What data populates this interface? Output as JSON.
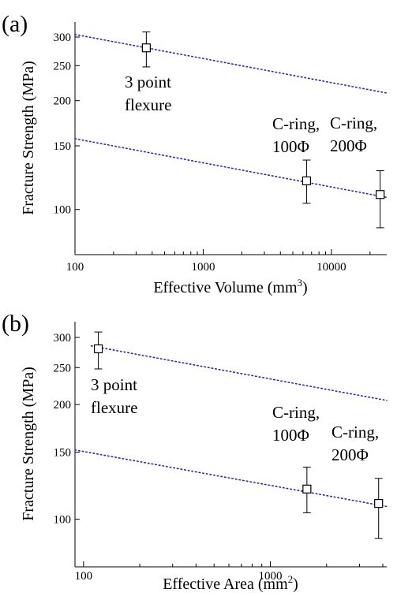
{
  "chart_data": [
    {
      "type": "scatter",
      "panel_label": "(a)",
      "xlabel": "Effective Volume (mm³)",
      "xlabel_base": "Effective Volume (mm",
      "xlabel_sup": "3",
      "xlabel_tail": ")",
      "ylabel": "Fracture Strength (MPa)",
      "xscale": "log",
      "yscale": "log",
      "xlim": [
        100,
        27000
      ],
      "ylim": [
        75,
        330
      ],
      "xticks": [
        100,
        1000,
        10000
      ],
      "xtick_labels": [
        "100",
        "1000",
        "10000"
      ],
      "yticks": [
        100,
        150,
        200,
        250,
        300
      ],
      "ytick_labels": [
        "100",
        "150",
        "200",
        "250",
        "300"
      ],
      "grid": false,
      "points": [
        {
          "x": 360,
          "y": 280,
          "err_lo": 32,
          "err_hi": 30,
          "label": [
            "3 point",
            "flexure"
          ]
        },
        {
          "x": 6400,
          "y": 120,
          "err_lo": 16,
          "err_hi": 17,
          "label": [
            "C-ring,",
            "100Φ"
          ]
        },
        {
          "x": 24000,
          "y": 110,
          "err_lo": 21,
          "err_hi": 18,
          "label": [
            "C-ring,",
            "200Φ"
          ]
        }
      ],
      "fit_lines": [
        {
          "x": [
            100,
            27000
          ],
          "y": [
            305,
            210
          ]
        },
        {
          "x": [
            100,
            27000
          ],
          "y": [
            157,
            108
          ]
        }
      ]
    },
    {
      "type": "scatter",
      "panel_label": "(b)",
      "xlabel": "Effective Area (mm²)",
      "xlabel_base": "Effective Area (mm",
      "xlabel_sup": "2",
      "xlabel_tail": ")",
      "ylabel": "Fracture Strength (MPa)",
      "xscale": "log",
      "yscale": "log",
      "xlim": [
        90,
        4200
      ],
      "ylim": [
        75,
        330
      ],
      "xticks": [
        100,
        1000
      ],
      "xtick_labels": [
        "100",
        "1000"
      ],
      "yticks": [
        100,
        150,
        200,
        250,
        300
      ],
      "ytick_labels": [
        "100",
        "150",
        "200",
        "250",
        "300"
      ],
      "grid": false,
      "points": [
        {
          "x": 120,
          "y": 280,
          "err_lo": 32,
          "err_hi": 30,
          "label": [
            "3 point",
            "flexure"
          ]
        },
        {
          "x": 1570,
          "y": 120,
          "err_lo": 16,
          "err_hi": 17,
          "label": [
            "C-ring,",
            "100Φ"
          ]
        },
        {
          "x": 3800,
          "y": 110,
          "err_lo": 21,
          "err_hi": 18,
          "label": [
            "C-ring,",
            "200Φ"
          ]
        }
      ],
      "fit_lines": [
        {
          "x": [
            110,
            4200
          ],
          "y": [
            285,
            205
          ]
        },
        {
          "x": [
            90,
            4200
          ],
          "y": [
            152,
            108
          ]
        }
      ]
    }
  ]
}
